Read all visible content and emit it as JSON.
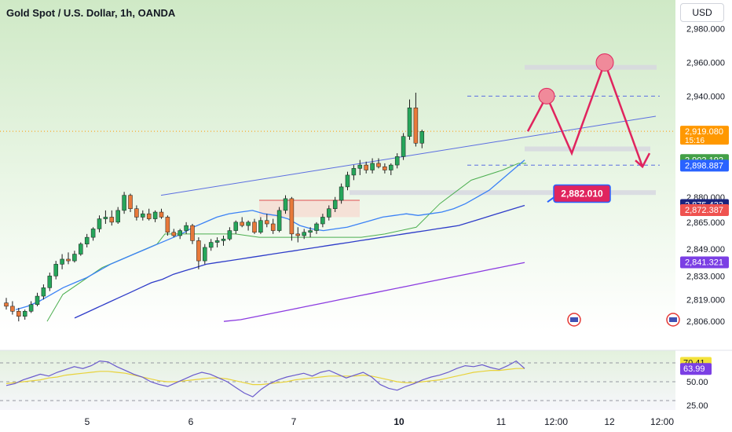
{
  "title": "Gold Spot / U.S. Dollar, 1h, OANDA",
  "currency_button": "USD",
  "colors": {
    "up": "#26a65b",
    "down": "#e8793a",
    "channel": "#5b6ee1",
    "ma_fast": "#3b82f6",
    "ma_slow": "#2e3cc9",
    "ma_long": "#8b3be0",
    "forecast": "#e0245e",
    "rsi": "#6a5acd",
    "rsi_signal": "#e8d23a"
  },
  "chart_data": [
    {
      "type": "line",
      "title": "Gold Spot / U.S. Dollar, 1h, OANDA",
      "y_ticks": [
        "2,980.000",
        "2,960.000",
        "2,940.000",
        "2,880.000",
        "2,865.000",
        "2,849.000",
        "2,833.000",
        "2,819.000",
        "2,806.000"
      ],
      "x_ticks": [
        "5",
        "6",
        "7",
        "10",
        "11",
        "12:00",
        "12",
        "12:00"
      ],
      "ylim": [
        2800,
        2985
      ],
      "series": [
        {
          "values": [
            2813,
            2815,
            2818,
            2822,
            2826,
            2829,
            2832,
            2836,
            2840,
            2843,
            2846,
            2849,
            2852,
            2855,
            2858,
            2862,
            2865,
            2868,
            2870,
            2871,
            2872,
            2870,
            2869,
            2867,
            2863,
            2861,
            2860,
            2861,
            2862,
            2864,
            2866,
            2868,
            2869,
            2870,
            2869,
            2870,
            2871,
            2873,
            2876,
            2880,
            2884,
            2890,
            2896,
            2902
          ]
        },
        {
          "values": [
            2808,
            2811,
            2814,
            2817,
            2820,
            2823,
            2826,
            2829,
            2831,
            2834,
            2836,
            2838,
            2840,
            2841,
            2842,
            2843,
            2844,
            2845,
            2846,
            2847,
            2848,
            2849,
            2850,
            2851,
            2852,
            2853,
            2854,
            2855,
            2856,
            2857,
            2858,
            2859,
            2860,
            2861,
            2862,
            2863,
            2865,
            2867,
            2869,
            2871,
            2873,
            2875
          ]
        },
        {
          "values": [
            2806,
            2807,
            2809,
            2811,
            2813,
            2815,
            2817,
            2819,
            2821,
            2823,
            2825,
            2827,
            2829,
            2831,
            2833,
            2835,
            2837,
            2839,
            2841
          ]
        }
      ],
      "candles": [
        [
          2817,
          2820,
          2813,
          2815
        ],
        [
          2815,
          2818,
          2810,
          2812
        ],
        [
          2812,
          2814,
          2806,
          2809
        ],
        [
          2809,
          2813,
          2807,
          2812
        ],
        [
          2812,
          2818,
          2811,
          2816
        ],
        [
          2816,
          2823,
          2815,
          2821
        ],
        [
          2821,
          2828,
          2819,
          2826
        ],
        [
          2826,
          2835,
          2824,
          2833
        ],
        [
          2833,
          2842,
          2831,
          2840
        ],
        [
          2840,
          2846,
          2837,
          2843
        ],
        [
          2843,
          2847,
          2840,
          2842
        ],
        [
          2842,
          2848,
          2841,
          2846
        ],
        [
          2846,
          2853,
          2845,
          2852
        ],
        [
          2852,
          2858,
          2850,
          2856
        ],
        [
          2856,
          2862,
          2854,
          2861
        ],
        [
          2861,
          2869,
          2859,
          2867
        ],
        [
          2867,
          2872,
          2864,
          2868
        ],
        [
          2868,
          2872,
          2863,
          2865
        ],
        [
          2865,
          2874,
          2864,
          2872
        ],
        [
          2872,
          2883,
          2870,
          2881
        ],
        [
          2881,
          2882,
          2871,
          2873
        ],
        [
          2873,
          2875,
          2866,
          2868
        ],
        [
          2868,
          2872,
          2866,
          2870
        ],
        [
          2870,
          2873,
          2866,
          2867
        ],
        [
          2867,
          2872,
          2865,
          2871
        ],
        [
          2871,
          2873,
          2867,
          2868
        ],
        [
          2868,
          2869,
          2857,
          2859
        ],
        [
          2859,
          2861,
          2856,
          2857
        ],
        [
          2857,
          2861,
          2855,
          2860
        ],
        [
          2860,
          2865,
          2858,
          2863
        ],
        [
          2863,
          2864,
          2852,
          2854
        ],
        [
          2854,
          2856,
          2837,
          2842
        ],
        [
          2842,
          2852,
          2840,
          2850
        ],
        [
          2850,
          2855,
          2848,
          2853
        ],
        [
          2853,
          2856,
          2850,
          2854
        ],
        [
          2854,
          2857,
          2851,
          2855
        ],
        [
          2855,
          2862,
          2854,
          2860
        ],
        [
          2860,
          2866,
          2858,
          2865
        ],
        [
          2865,
          2868,
          2862,
          2863
        ],
        [
          2863,
          2866,
          2860,
          2865
        ],
        [
          2865,
          2867,
          2858,
          2859
        ],
        [
          2859,
          2868,
          2858,
          2866
        ],
        [
          2866,
          2870,
          2862,
          2864
        ],
        [
          2864,
          2867,
          2858,
          2860
        ],
        [
          2860,
          2874,
          2859,
          2872
        ],
        [
          2872,
          2881,
          2870,
          2879
        ],
        [
          2879,
          2880,
          2854,
          2858
        ],
        [
          2858,
          2862,
          2853,
          2857
        ],
        [
          2857,
          2861,
          2855,
          2859
        ],
        [
          2859,
          2862,
          2856,
          2860
        ],
        [
          2860,
          2865,
          2858,
          2864
        ],
        [
          2864,
          2870,
          2862,
          2868
        ],
        [
          2868,
          2875,
          2866,
          2873
        ],
        [
          2873,
          2880,
          2871,
          2878
        ],
        [
          2878,
          2888,
          2876,
          2886
        ],
        [
          2886,
          2895,
          2884,
          2893
        ],
        [
          2893,
          2899,
          2890,
          2897
        ],
        [
          2897,
          2902,
          2893,
          2899
        ],
        [
          2899,
          2901,
          2894,
          2896
        ],
        [
          2896,
          2903,
          2894,
          2900
        ],
        [
          2900,
          2903,
          2897,
          2898
        ],
        [
          2898,
          2900,
          2894,
          2896
        ],
        [
          2896,
          2900,
          2893,
          2899
        ],
        [
          2899,
          2906,
          2897,
          2904
        ],
        [
          2904,
          2918,
          2902,
          2916
        ],
        [
          2916,
          2938,
          2914,
          2933
        ],
        [
          2933,
          2942,
          2910,
          2912
        ],
        [
          2912,
          2920,
          2909,
          2919
        ]
      ],
      "forecast_path": [
        [
          2919,
          2940
        ],
        [
          2940,
          2906
        ],
        [
          2906,
          2960
        ],
        [
          2960,
          2898
        ]
      ],
      "price_labels": [
        {
          "value": 2919.08,
          "text": "2,919.080",
          "sub": "15:16",
          "color": "#ff9800"
        },
        {
          "value": 2902.192,
          "text": "2,902.192",
          "color": "#43a047"
        },
        {
          "value": 2898.887,
          "text": "2,898.887",
          "color": "#2962ff"
        },
        {
          "value": 2875.433,
          "text": "2,875.433",
          "color": "#1a237e"
        },
        {
          "value": 2872.387,
          "text": "2,872.387",
          "color": "#ef5350"
        },
        {
          "value": 2841.321,
          "text": "2,841.321",
          "color": "#7b3fe4"
        }
      ],
      "callout": {
        "value": 2882.01,
        "text": "2,882.010"
      }
    },
    {
      "type": "line",
      "title": "",
      "y_ticks": [
        "50.00",
        "25.00"
      ],
      "ylim": [
        20,
        80
      ],
      "series": [
        {
          "values": [
            46,
            48,
            52,
            55,
            58,
            56,
            60,
            63,
            66,
            64,
            67,
            72,
            71,
            66,
            62,
            58,
            55,
            50,
            47,
            45,
            49,
            53,
            57,
            60,
            58,
            54,
            50,
            44,
            38,
            34,
            42,
            48,
            52,
            55,
            57,
            59,
            56,
            60,
            62,
            58,
            54,
            57,
            60,
            55,
            47,
            43,
            41,
            45,
            48,
            52,
            55,
            57,
            60,
            64,
            67,
            66,
            68,
            65,
            63,
            67,
            72,
            64
          ]
        },
        {
          "values": [
            48,
            49,
            50,
            51,
            52,
            54,
            55,
            57,
            58,
            59,
            60,
            61,
            61,
            60,
            59,
            57,
            55,
            53,
            51,
            50,
            50,
            51,
            52,
            53,
            54,
            54,
            53,
            51,
            49,
            47,
            47,
            48,
            49,
            50,
            52,
            53,
            54,
            55,
            56,
            56,
            56,
            56,
            57,
            56,
            54,
            52,
            50,
            49,
            49,
            50,
            51,
            52,
            54,
            56,
            58,
            60,
            61,
            62,
            62,
            63,
            64,
            64
          ]
        }
      ],
      "value_labels": [
        {
          "value": 70.41,
          "text": "70.41"
        },
        {
          "value": 63.99,
          "text": "63.99"
        }
      ]
    }
  ]
}
